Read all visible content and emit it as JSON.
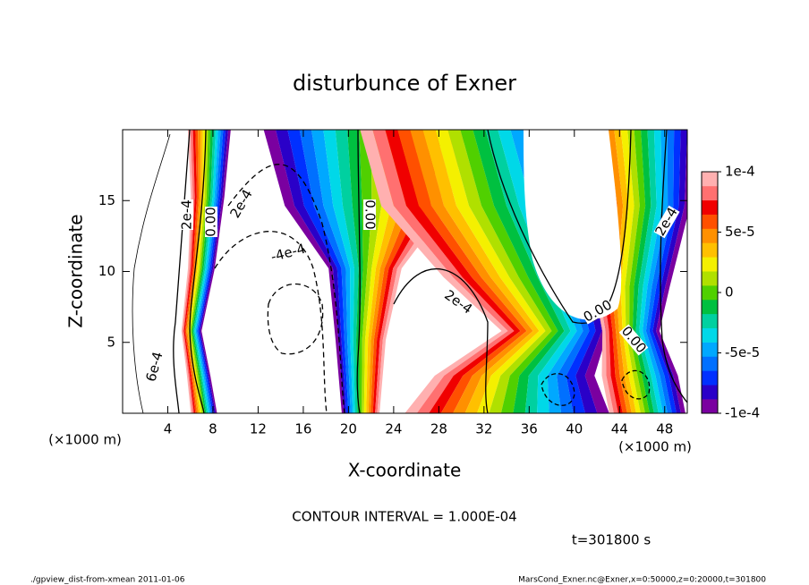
{
  "chart_data": {
    "type": "contour",
    "title": "disturbunce of Exner",
    "xlabel": "X-coordinate",
    "ylabel": "Z-coordinate",
    "x_unit_left": "(×1000 m)",
    "x_unit_right": "(×1000 m)",
    "xlim": [
      0,
      50
    ],
    "xticks": [
      4,
      8,
      12,
      16,
      20,
      24,
      28,
      32,
      36,
      40,
      44,
      48
    ],
    "ylim": [
      0,
      20
    ],
    "yticks": [
      5,
      10,
      15
    ],
    "colorbar": {
      "lim": [
        -0.0001,
        0.0001
      ],
      "ticks": [
        {
          "value": 0.0001,
          "label": "1e-4"
        },
        {
          "value": 5e-05,
          "label": "5e-5"
        },
        0,
        {
          "value": -5e-05,
          "label": "-5e-5"
        },
        {
          "value": -0.0001,
          "label": "-1e-4"
        }
      ],
      "colors": [
        "#7a00a0",
        "#2a00c8",
        "#0030ff",
        "#0070ff",
        "#00a8ff",
        "#00d8e8",
        "#00d0a0",
        "#00c040",
        "#50d000",
        "#b0e000",
        "#f4f000",
        "#ffc000",
        "#ff9000",
        "#ff5000",
        "#f00000",
        "#ff7070",
        "#ffb0b0"
      ]
    },
    "contour_labels": [
      "2e-4",
      "0.00",
      "2e-4",
      "-4e-4",
      "0.00",
      "2e-4",
      "0.00",
      "0.00",
      "2e-4",
      "6e-4"
    ],
    "contour_interval": "CONTOUR INTERVAL = 1.000E-04",
    "time": "t=301800 s",
    "footer_left": "./gpview_dist-from-xmean  2011-01-06",
    "footer_right": "MarsCond_Exner.nc@Exner,x=0:50000,z=0:20000,t=301800"
  }
}
